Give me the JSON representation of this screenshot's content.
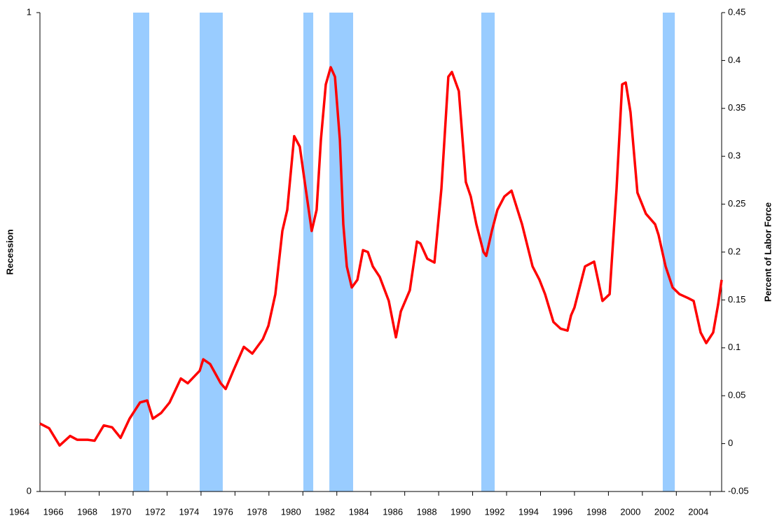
{
  "chart_data": {
    "type": "line",
    "y_label": "Recession",
    "y2_label": "Percent of Labor Force",
    "xlim": [
      1964.51,
      2004.67
    ],
    "xticks": [
      1964,
      1966,
      1968,
      1970,
      1972,
      1974,
      1976,
      1978,
      1980,
      1982,
      1984,
      1986,
      1988,
      1990,
      1992,
      1994,
      1996,
      1998,
      2000,
      2002,
      2004
    ],
    "ylim": [
      0,
      1
    ],
    "yticks": [
      0,
      1
    ],
    "y2lim": [
      -0.05,
      0.45
    ],
    "y2ticks": [
      -0.05,
      0,
      0.05,
      0.1,
      0.15,
      0.2,
      0.25,
      0.3,
      0.35,
      0.4,
      0.45
    ],
    "recessions": {
      "color": "#99ccff",
      "value": 1,
      "bands": [
        [
          1970.0,
          1970.95
        ],
        [
          1973.92,
          1975.28
        ],
        [
          1980.03,
          1980.61
        ],
        [
          1981.56,
          1982.96
        ],
        [
          1990.51,
          1991.3
        ],
        [
          2001.2,
          2001.91
        ]
      ]
    },
    "series": [
      {
        "color": "#ff0000",
        "axis": "y2",
        "x": [
          1964.51,
          1965.05,
          1965.67,
          1966.29,
          1966.7,
          1967.32,
          1967.73,
          1968.27,
          1968.76,
          1969.26,
          1969.79,
          1970.41,
          1970.83,
          1971.16,
          1971.65,
          1972.15,
          1972.81,
          1973.22,
          1973.92,
          1974.13,
          1974.54,
          1975.16,
          1975.45,
          1975.9,
          1976.52,
          1977.02,
          1977.64,
          1977.97,
          1978.38,
          1978.79,
          1979.08,
          1979.49,
          1979.82,
          1980.11,
          1980.52,
          1980.81,
          1981.06,
          1981.35,
          1981.64,
          1981.89,
          1982.18,
          1982.38,
          1982.59,
          1982.88,
          1983.21,
          1983.54,
          1983.83,
          1984.12,
          1984.53,
          1985.06,
          1985.48,
          1985.77,
          1986.3,
          1986.72,
          1986.92,
          1987.33,
          1987.75,
          1988.16,
          1988.57,
          1988.78,
          1989.19,
          1989.6,
          1989.89,
          1990.22,
          1990.64,
          1990.8,
          1991.13,
          1991.46,
          1991.87,
          1992.29,
          1992.91,
          1993.53,
          1993.94,
          1994.27,
          1994.76,
          1995.18,
          1995.59,
          1995.8,
          1996.0,
          1996.62,
          1997.16,
          1997.65,
          1998.07,
          1998.48,
          1998.81,
          1999.02,
          1999.3,
          1999.71,
          2000.21,
          2000.75,
          2000.95,
          2001.37,
          2001.78,
          2002.19,
          2002.69,
          2003.02,
          2003.43,
          2003.76,
          2004.17,
          2004.46,
          2004.67
        ],
        "values": [
          0.021,
          0.016,
          -0.002,
          0.008,
          0.004,
          0.004,
          0.003,
          0.019,
          0.017,
          0.006,
          0.026,
          0.043,
          0.045,
          0.026,
          0.032,
          0.043,
          0.068,
          0.063,
          0.076,
          0.088,
          0.083,
          0.063,
          0.057,
          0.076,
          0.101,
          0.094,
          0.109,
          0.123,
          0.156,
          0.222,
          0.244,
          0.321,
          0.31,
          0.273,
          0.222,
          0.244,
          0.317,
          0.375,
          0.393,
          0.383,
          0.317,
          0.229,
          0.185,
          0.163,
          0.171,
          0.202,
          0.2,
          0.185,
          0.174,
          0.149,
          0.111,
          0.138,
          0.16,
          0.211,
          0.209,
          0.193,
          0.189,
          0.266,
          0.383,
          0.388,
          0.368,
          0.273,
          0.258,
          0.229,
          0.2,
          0.196,
          0.222,
          0.244,
          0.258,
          0.264,
          0.229,
          0.185,
          0.171,
          0.156,
          0.127,
          0.12,
          0.118,
          0.134,
          0.142,
          0.185,
          0.19,
          0.149,
          0.156,
          0.266,
          0.375,
          0.377,
          0.346,
          0.262,
          0.24,
          0.229,
          0.218,
          0.185,
          0.163,
          0.156,
          0.152,
          0.149,
          0.116,
          0.105,
          0.116,
          0.145,
          0.171
        ]
      }
    ]
  }
}
